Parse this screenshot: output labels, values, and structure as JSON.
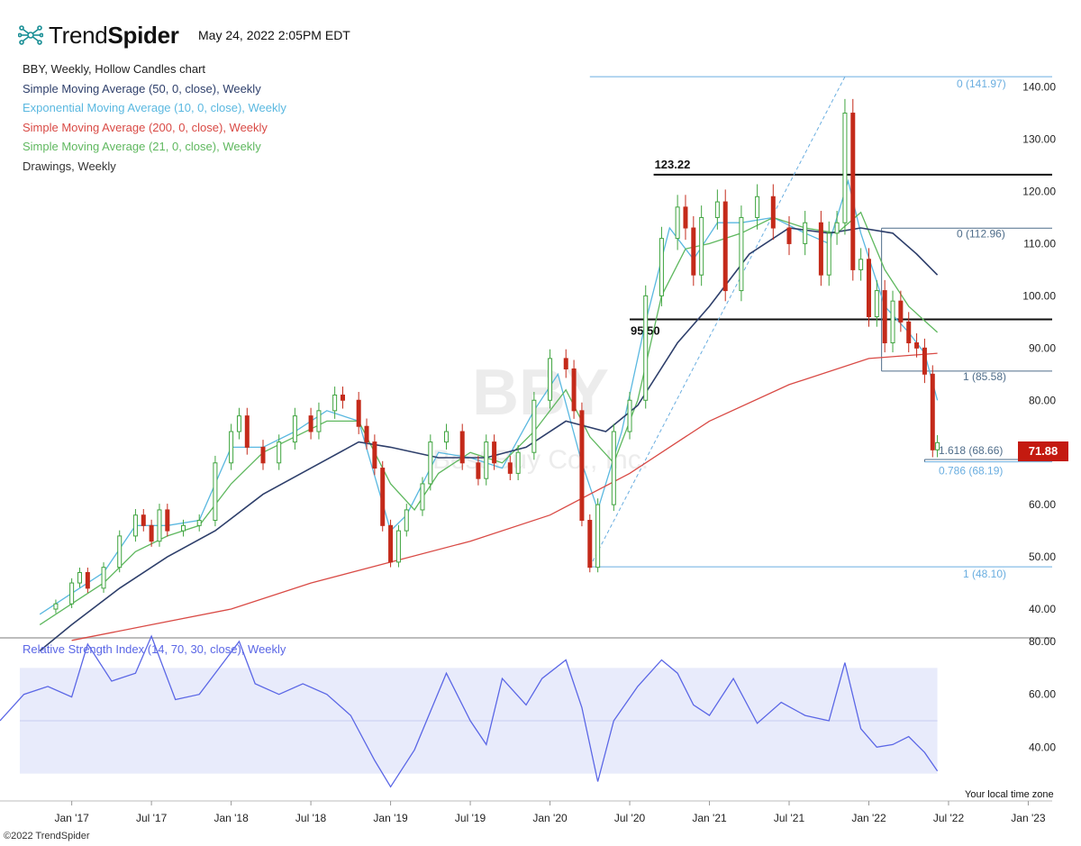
{
  "header": {
    "brand_light": "Trend",
    "brand_bold": "Spider",
    "timestamp": "May 24, 2022 2:05PM EDT"
  },
  "legend": {
    "title": "BBY, Weekly, Hollow Candles chart",
    "sma50": "Simple Moving Average (50, 0, close), Weekly",
    "ema10": "Exponential Moving Average (10, 0, close), Weekly",
    "sma200": "Simple Moving Average (200, 0, close), Weekly",
    "sma21": "Simple Moving Average (21, 0, close), Weekly",
    "drawings": "Drawings, Weekly"
  },
  "colors": {
    "up": "#3fa43f",
    "down": "#c42a1a",
    "sma50": "#2e3f6b",
    "ema10": "#5ab8e0",
    "sma200": "#d94a45",
    "sma21": "#5fb85f",
    "rsi": "#5b67e6",
    "fib_light": "#6aaee0",
    "fib_dark": "#4f6d8a"
  },
  "watermark": {
    "symbol": "BBY",
    "company": "Best Buy Co., Inc."
  },
  "current_price": "71.88",
  "footer": {
    "copyright": "©2022 TrendSpider",
    "timezone": "Your local time zone"
  },
  "chart_data": {
    "type": "line",
    "symbol": "BBY",
    "timeframe": "Weekly",
    "style": "Hollow Candles",
    "x_ticks": [
      "Jan '17",
      "Jul '17",
      "Jan '18",
      "Jul '18",
      "Jan '19",
      "Jul '19",
      "Jan '20",
      "Jul '20",
      "Jan '21",
      "Jul '21",
      "Jan '22",
      "Jul '22",
      "Jan '23"
    ],
    "price_ticks": [
      "140.00",
      "130.00",
      "120.00",
      "110.00",
      "100.00",
      "90.00",
      "80.00",
      "70.00",
      "60.00",
      "50.00",
      "40.00"
    ],
    "price_range": [
      35,
      142
    ],
    "rsi_ticks": [
      "80.00",
      "60.00",
      "40.00"
    ],
    "rsi_range": [
      20,
      80
    ],
    "rsi_title": "Relative Strength Index (14, 70, 30, close), Weekly",
    "rsi_bands": [
      30,
      70
    ],
    "series": [
      {
        "name": "Close (weekly, approx.)",
        "points": [
          [
            2016.8,
            40
          ],
          [
            2016.9,
            41
          ],
          [
            2017.0,
            45
          ],
          [
            2017.05,
            47
          ],
          [
            2017.1,
            44
          ],
          [
            2017.2,
            48
          ],
          [
            2017.3,
            54
          ],
          [
            2017.4,
            58
          ],
          [
            2017.45,
            56
          ],
          [
            2017.5,
            53
          ],
          [
            2017.55,
            59
          ],
          [
            2017.6,
            55
          ],
          [
            2017.7,
            56
          ],
          [
            2017.8,
            57
          ],
          [
            2017.9,
            68
          ],
          [
            2018.0,
            74
          ],
          [
            2018.05,
            77
          ],
          [
            2018.1,
            71
          ],
          [
            2018.2,
            68
          ],
          [
            2018.3,
            72
          ],
          [
            2018.4,
            77
          ],
          [
            2018.5,
            74
          ],
          [
            2018.55,
            78
          ],
          [
            2018.65,
            81
          ],
          [
            2018.7,
            80
          ],
          [
            2018.8,
            75
          ],
          [
            2018.85,
            72
          ],
          [
            2018.9,
            67
          ],
          [
            2018.95,
            56
          ],
          [
            2019.0,
            49
          ],
          [
            2019.05,
            55
          ],
          [
            2019.1,
            59
          ],
          [
            2019.2,
            64
          ],
          [
            2019.25,
            72
          ],
          [
            2019.35,
            74
          ],
          [
            2019.45,
            68
          ],
          [
            2019.55,
            65
          ],
          [
            2019.6,
            72
          ],
          [
            2019.65,
            68
          ],
          [
            2019.75,
            66
          ],
          [
            2019.8,
            70
          ],
          [
            2019.9,
            80
          ],
          [
            2020.0,
            88
          ],
          [
            2020.1,
            86
          ],
          [
            2020.15,
            78
          ],
          [
            2020.2,
            57
          ],
          [
            2020.25,
            48
          ],
          [
            2020.3,
            60
          ],
          [
            2020.4,
            74
          ],
          [
            2020.5,
            80
          ],
          [
            2020.6,
            100
          ],
          [
            2020.7,
            111
          ],
          [
            2020.8,
            117
          ],
          [
            2020.85,
            113
          ],
          [
            2020.9,
            104
          ],
          [
            2020.95,
            115
          ],
          [
            2021.05,
            118
          ],
          [
            2021.1,
            101
          ],
          [
            2021.2,
            115
          ],
          [
            2021.3,
            119
          ],
          [
            2021.4,
            113
          ],
          [
            2021.5,
            110
          ],
          [
            2021.6,
            114
          ],
          [
            2021.7,
            104
          ],
          [
            2021.75,
            112
          ],
          [
            2021.8,
            114
          ],
          [
            2021.85,
            135
          ],
          [
            2021.9,
            105
          ],
          [
            2021.95,
            107
          ],
          [
            2022.0,
            96
          ],
          [
            2022.05,
            101
          ],
          [
            2022.1,
            91
          ],
          [
            2022.15,
            99
          ],
          [
            2022.2,
            95
          ],
          [
            2022.25,
            91
          ],
          [
            2022.3,
            90
          ],
          [
            2022.35,
            85
          ],
          [
            2022.4,
            70.5
          ],
          [
            2022.43,
            71.88
          ]
        ]
      },
      {
        "name": "EMA 10 (approx.)",
        "points": [
          [
            2016.8,
            39
          ],
          [
            2017.0,
            43
          ],
          [
            2017.2,
            47
          ],
          [
            2017.4,
            56
          ],
          [
            2017.6,
            56
          ],
          [
            2017.8,
            57
          ],
          [
            2018.0,
            71
          ],
          [
            2018.2,
            71
          ],
          [
            2018.4,
            74
          ],
          [
            2018.6,
            78
          ],
          [
            2018.8,
            76
          ],
          [
            2019.0,
            55
          ],
          [
            2019.1,
            58
          ],
          [
            2019.3,
            70
          ],
          [
            2019.5,
            69
          ],
          [
            2019.7,
            67
          ],
          [
            2019.9,
            78
          ],
          [
            2020.05,
            85
          ],
          [
            2020.2,
            68
          ],
          [
            2020.3,
            59
          ],
          [
            2020.45,
            74
          ],
          [
            2020.6,
            95
          ],
          [
            2020.75,
            113
          ],
          [
            2020.9,
            107
          ],
          [
            2021.05,
            114
          ],
          [
            2021.2,
            114
          ],
          [
            2021.4,
            115
          ],
          [
            2021.6,
            112
          ],
          [
            2021.75,
            110
          ],
          [
            2021.87,
            122
          ],
          [
            2021.95,
            112
          ],
          [
            2022.1,
            98
          ],
          [
            2022.25,
            93
          ],
          [
            2022.35,
            89
          ],
          [
            2022.43,
            80
          ]
        ]
      },
      {
        "name": "SMA 21 (approx.)",
        "points": [
          [
            2016.8,
            37
          ],
          [
            2017.0,
            41
          ],
          [
            2017.2,
            45
          ],
          [
            2017.4,
            51
          ],
          [
            2017.6,
            54
          ],
          [
            2017.8,
            56
          ],
          [
            2018.0,
            64
          ],
          [
            2018.2,
            70
          ],
          [
            2018.4,
            73
          ],
          [
            2018.6,
            76
          ],
          [
            2018.8,
            76
          ],
          [
            2019.0,
            64
          ],
          [
            2019.15,
            59
          ],
          [
            2019.3,
            66
          ],
          [
            2019.5,
            70
          ],
          [
            2019.7,
            68
          ],
          [
            2019.9,
            74
          ],
          [
            2020.1,
            82
          ],
          [
            2020.25,
            73
          ],
          [
            2020.4,
            68
          ],
          [
            2020.55,
            80
          ],
          [
            2020.7,
            100
          ],
          [
            2020.85,
            109
          ],
          [
            2021.0,
            110
          ],
          [
            2021.2,
            112
          ],
          [
            2021.4,
            115
          ],
          [
            2021.6,
            113
          ],
          [
            2021.8,
            112
          ],
          [
            2021.95,
            116
          ],
          [
            2022.1,
            105
          ],
          [
            2022.25,
            98
          ],
          [
            2022.43,
            93
          ]
        ]
      },
      {
        "name": "SMA 50 (approx.)",
        "points": [
          [
            2016.8,
            32
          ],
          [
            2017.0,
            37
          ],
          [
            2017.3,
            44
          ],
          [
            2017.6,
            50
          ],
          [
            2017.9,
            55
          ],
          [
            2018.2,
            62
          ],
          [
            2018.5,
            67
          ],
          [
            2018.8,
            72
          ],
          [
            2019.0,
            71
          ],
          [
            2019.3,
            69
          ],
          [
            2019.6,
            69
          ],
          [
            2019.85,
            71
          ],
          [
            2020.1,
            76
          ],
          [
            2020.35,
            74
          ],
          [
            2020.55,
            79
          ],
          [
            2020.8,
            91
          ],
          [
            2021.0,
            98
          ],
          [
            2021.25,
            108
          ],
          [
            2021.5,
            113
          ],
          [
            2021.75,
            112
          ],
          [
            2021.95,
            113
          ],
          [
            2022.15,
            112
          ],
          [
            2022.3,
            108
          ],
          [
            2022.43,
            104
          ]
        ]
      },
      {
        "name": "SMA 200 (approx.)",
        "points": [
          [
            2017.0,
            34
          ],
          [
            2017.5,
            37
          ],
          [
            2018.0,
            40
          ],
          [
            2018.5,
            45
          ],
          [
            2019.0,
            49
          ],
          [
            2019.5,
            53
          ],
          [
            2020.0,
            58
          ],
          [
            2020.5,
            66
          ],
          [
            2021.0,
            76
          ],
          [
            2021.5,
            83
          ],
          [
            2022.0,
            88
          ],
          [
            2022.43,
            89
          ]
        ]
      },
      {
        "name": "RSI 14 (approx.)",
        "points": [
          [
            2016.55,
            50
          ],
          [
            2016.7,
            60
          ],
          [
            2016.85,
            63
          ],
          [
            2017.0,
            59
          ],
          [
            2017.1,
            79
          ],
          [
            2017.25,
            65
          ],
          [
            2017.4,
            68
          ],
          [
            2017.5,
            82
          ],
          [
            2017.65,
            58
          ],
          [
            2017.8,
            60
          ],
          [
            2017.95,
            72
          ],
          [
            2018.05,
            80
          ],
          [
            2018.15,
            64
          ],
          [
            2018.3,
            60
          ],
          [
            2018.45,
            64
          ],
          [
            2018.6,
            60
          ],
          [
            2018.75,
            52
          ],
          [
            2018.9,
            35
          ],
          [
            2019.0,
            25
          ],
          [
            2019.15,
            39
          ],
          [
            2019.35,
            68
          ],
          [
            2019.5,
            50
          ],
          [
            2019.6,
            41
          ],
          [
            2019.7,
            66
          ],
          [
            2019.85,
            56
          ],
          [
            2019.95,
            66
          ],
          [
            2020.1,
            73
          ],
          [
            2020.2,
            55
          ],
          [
            2020.3,
            27
          ],
          [
            2020.4,
            50
          ],
          [
            2020.55,
            63
          ],
          [
            2020.7,
            73
          ],
          [
            2020.8,
            68
          ],
          [
            2020.9,
            56
          ],
          [
            2021.0,
            52
          ],
          [
            2021.15,
            66
          ],
          [
            2021.3,
            49
          ],
          [
            2021.45,
            57
          ],
          [
            2021.6,
            52
          ],
          [
            2021.75,
            50
          ],
          [
            2021.85,
            72
          ],
          [
            2021.95,
            47
          ],
          [
            2022.05,
            40
          ],
          [
            2022.15,
            41
          ],
          [
            2022.25,
            44
          ],
          [
            2022.35,
            38
          ],
          [
            2022.43,
            31
          ]
        ]
      }
    ],
    "annotations": [
      {
        "type": "hline",
        "label": "123.22",
        "value": 123.22,
        "x_start": 2020.65
      },
      {
        "type": "hline",
        "label": "95.50",
        "value": 95.5,
        "x_start": 2020.5
      },
      {
        "type": "fib",
        "label": "0 (141.97)",
        "value": 141.97,
        "x_start": 2020.25
      },
      {
        "type": "fib",
        "label": "1 (48.10)",
        "value": 48.1,
        "x_start": 2020.25
      },
      {
        "type": "fib",
        "label": "0.786 (68.19)",
        "value": 68.19,
        "x_start": 2022.35
      },
      {
        "type": "fib",
        "label": "0 (112.96)",
        "value": 112.96,
        "x_start": 2022.08
      },
      {
        "type": "fib",
        "label": "1 (85.58)",
        "value": 85.58,
        "x_start": 2022.08
      },
      {
        "type": "fib",
        "label": "1.618 (68.66)",
        "value": 68.66,
        "x_start": 2022.35
      }
    ]
  }
}
